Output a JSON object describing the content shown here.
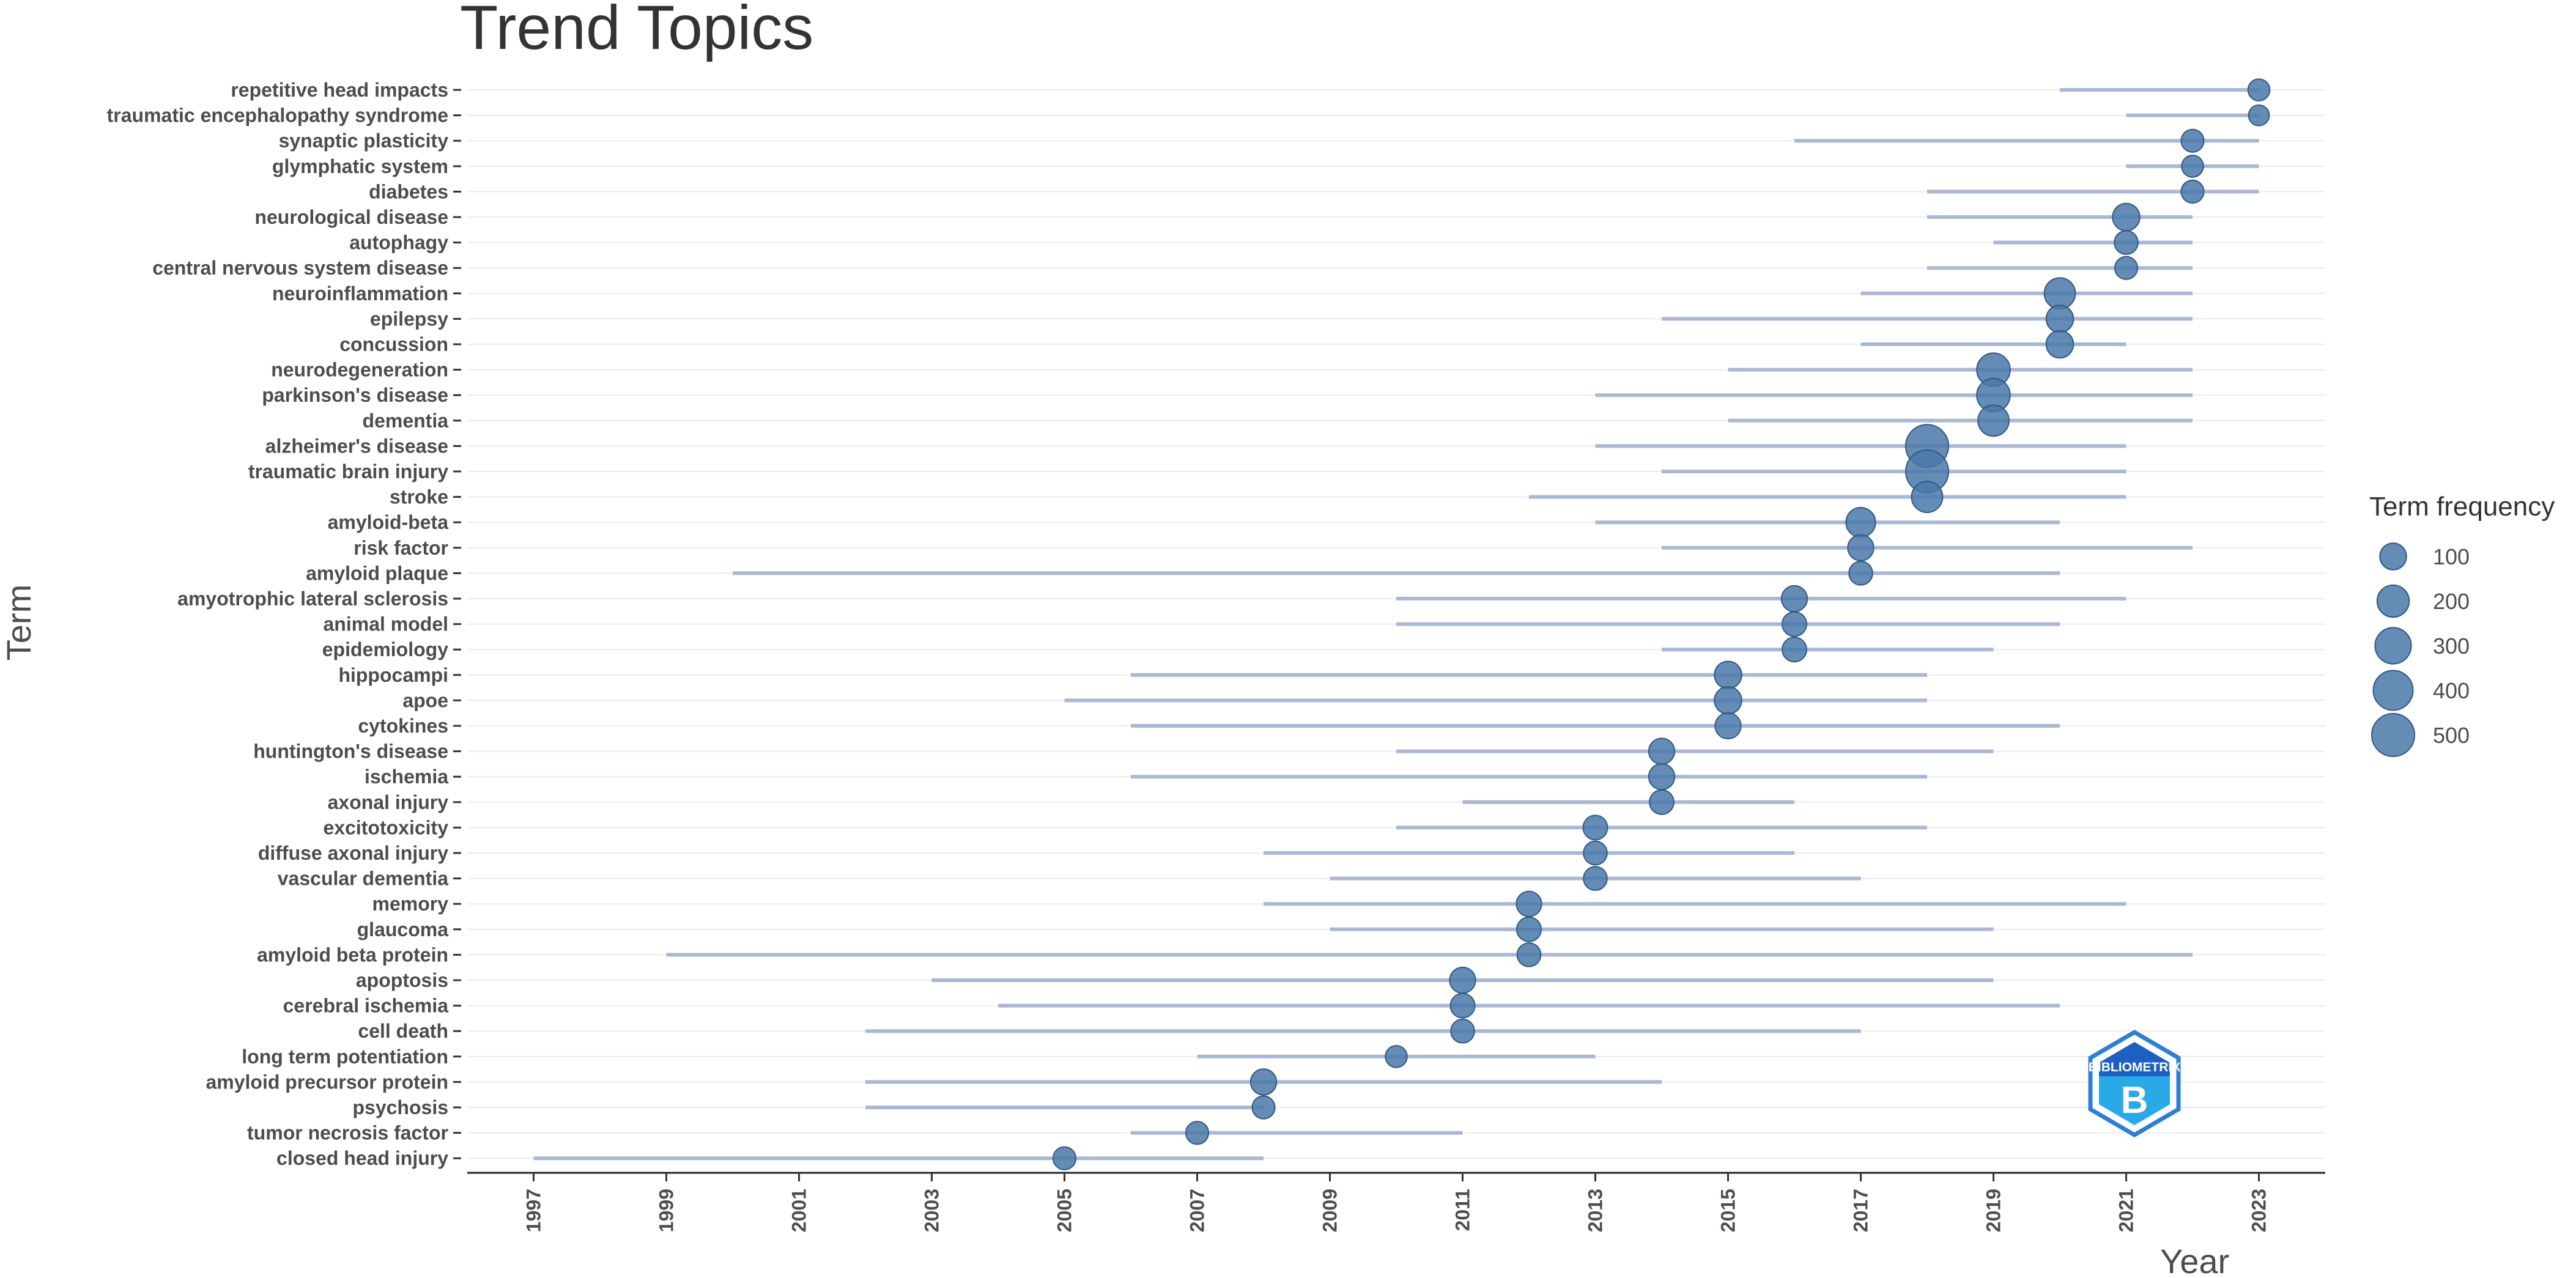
{
  "chart_data": {
    "type": "scatter",
    "title": "Trend Topics",
    "xlabel": "Year",
    "ylabel": "Term",
    "xlim": [
      1996,
      2024
    ],
    "x_ticks": [
      1997,
      1999,
      2001,
      2003,
      2005,
      2007,
      2009,
      2011,
      2013,
      2015,
      2017,
      2019,
      2021,
      2023
    ],
    "grid": "horizontal",
    "legend": {
      "title": "Term frequency",
      "placement": "right",
      "values": [
        100,
        200,
        300,
        400,
        500
      ]
    },
    "colors": {
      "point": "#4a78a8",
      "range": "#aab8d6",
      "grid": "#ebebeb"
    },
    "terms": [
      {
        "term": "repetitive head impacts",
        "start": 2020,
        "peak": 2023,
        "end": 2023,
        "freq": 40
      },
      {
        "term": "traumatic encephalopathy syndrome",
        "start": 2021,
        "peak": 2023,
        "end": 2023,
        "freq": 30
      },
      {
        "term": "synaptic plasticity",
        "start": 2016,
        "peak": 2022,
        "end": 2023,
        "freq": 50
      },
      {
        "term": "glymphatic system",
        "start": 2021,
        "peak": 2022,
        "end": 2023,
        "freq": 40
      },
      {
        "term": "diabetes",
        "start": 2018,
        "peak": 2022,
        "end": 2023,
        "freq": 50
      },
      {
        "term": "neurological disease",
        "start": 2018,
        "peak": 2021,
        "end": 2022,
        "freq": 110
      },
      {
        "term": "autophagy",
        "start": 2019,
        "peak": 2021,
        "end": 2022,
        "freq": 60
      },
      {
        "term": "central nervous system disease",
        "start": 2018,
        "peak": 2021,
        "end": 2022,
        "freq": 50
      },
      {
        "term": "neuroinflammation",
        "start": 2017,
        "peak": 2020,
        "end": 2022,
        "freq": 180
      },
      {
        "term": "epilepsy",
        "start": 2014,
        "peak": 2020,
        "end": 2022,
        "freq": 110
      },
      {
        "term": "concussion",
        "start": 2017,
        "peak": 2020,
        "end": 2021,
        "freq": 110
      },
      {
        "term": "neurodegeneration",
        "start": 2015,
        "peak": 2019,
        "end": 2022,
        "freq": 230
      },
      {
        "term": "parkinson's disease",
        "start": 2013,
        "peak": 2019,
        "end": 2022,
        "freq": 230
      },
      {
        "term": "dementia",
        "start": 2015,
        "peak": 2019,
        "end": 2022,
        "freq": 180
      },
      {
        "term": "alzheimer's disease",
        "start": 2013,
        "peak": 2018,
        "end": 2021,
        "freq": 500
      },
      {
        "term": "traumatic brain injury",
        "start": 2014,
        "peak": 2018,
        "end": 2021,
        "freq": 500
      },
      {
        "term": "stroke",
        "start": 2012,
        "peak": 2018,
        "end": 2021,
        "freq": 180
      },
      {
        "term": "amyloid-beta",
        "start": 2013,
        "peak": 2017,
        "end": 2020,
        "freq": 150
      },
      {
        "term": "risk factor",
        "start": 2014,
        "peak": 2017,
        "end": 2022,
        "freq": 90
      },
      {
        "term": "amyloid plaque",
        "start": 2000,
        "peak": 2017,
        "end": 2020,
        "freq": 60
      },
      {
        "term": "amyotrophic lateral sclerosis",
        "start": 2010,
        "peak": 2016,
        "end": 2021,
        "freq": 90
      },
      {
        "term": "animal model",
        "start": 2010,
        "peak": 2016,
        "end": 2020,
        "freq": 70
      },
      {
        "term": "epidemiology",
        "start": 2014,
        "peak": 2016,
        "end": 2019,
        "freq": 70
      },
      {
        "term": "hippocampi",
        "start": 2006,
        "peak": 2015,
        "end": 2018,
        "freq": 110
      },
      {
        "term": "apoe",
        "start": 2005,
        "peak": 2015,
        "end": 2018,
        "freq": 110
      },
      {
        "term": "cytokines",
        "start": 2006,
        "peak": 2015,
        "end": 2020,
        "freq": 90
      },
      {
        "term": "huntington's disease",
        "start": 2010,
        "peak": 2014,
        "end": 2019,
        "freq": 90
      },
      {
        "term": "ischemia",
        "start": 2006,
        "peak": 2014,
        "end": 2018,
        "freq": 90
      },
      {
        "term": "axonal injury",
        "start": 2011,
        "peak": 2014,
        "end": 2016,
        "freq": 70
      },
      {
        "term": "excitotoxicity",
        "start": 2010,
        "peak": 2013,
        "end": 2018,
        "freq": 70
      },
      {
        "term": "diffuse axonal injury",
        "start": 2008,
        "peak": 2013,
        "end": 2016,
        "freq": 60
      },
      {
        "term": "vascular dementia",
        "start": 2009,
        "peak": 2013,
        "end": 2017,
        "freq": 60
      },
      {
        "term": "memory",
        "start": 2008,
        "peak": 2012,
        "end": 2021,
        "freq": 80
      },
      {
        "term": "glaucoma",
        "start": 2009,
        "peak": 2012,
        "end": 2019,
        "freq": 70
      },
      {
        "term": "amyloid beta protein",
        "start": 1999,
        "peak": 2012,
        "end": 2022,
        "freq": 60
      },
      {
        "term": "apoptosis",
        "start": 2003,
        "peak": 2011,
        "end": 2019,
        "freq": 90
      },
      {
        "term": "cerebral ischemia",
        "start": 2004,
        "peak": 2011,
        "end": 2020,
        "freq": 70
      },
      {
        "term": "cell death",
        "start": 2002,
        "peak": 2011,
        "end": 2017,
        "freq": 60
      },
      {
        "term": "long term potentiation",
        "start": 2007,
        "peak": 2010,
        "end": 2013,
        "freq": 40
      },
      {
        "term": "amyloid precursor protein",
        "start": 2002,
        "peak": 2008,
        "end": 2014,
        "freq": 90
      },
      {
        "term": "psychosis",
        "start": 2002,
        "peak": 2008,
        "end": 2008,
        "freq": 50
      },
      {
        "term": "tumor necrosis factor",
        "start": 2006,
        "peak": 2007,
        "end": 2011,
        "freq": 50
      },
      {
        "term": "closed head injury",
        "start": 1997,
        "peak": 2005,
        "end": 2008,
        "freq": 50
      }
    ]
  },
  "logo": {
    "text": "BIBLIOMETRIX",
    "mark": "B"
  }
}
